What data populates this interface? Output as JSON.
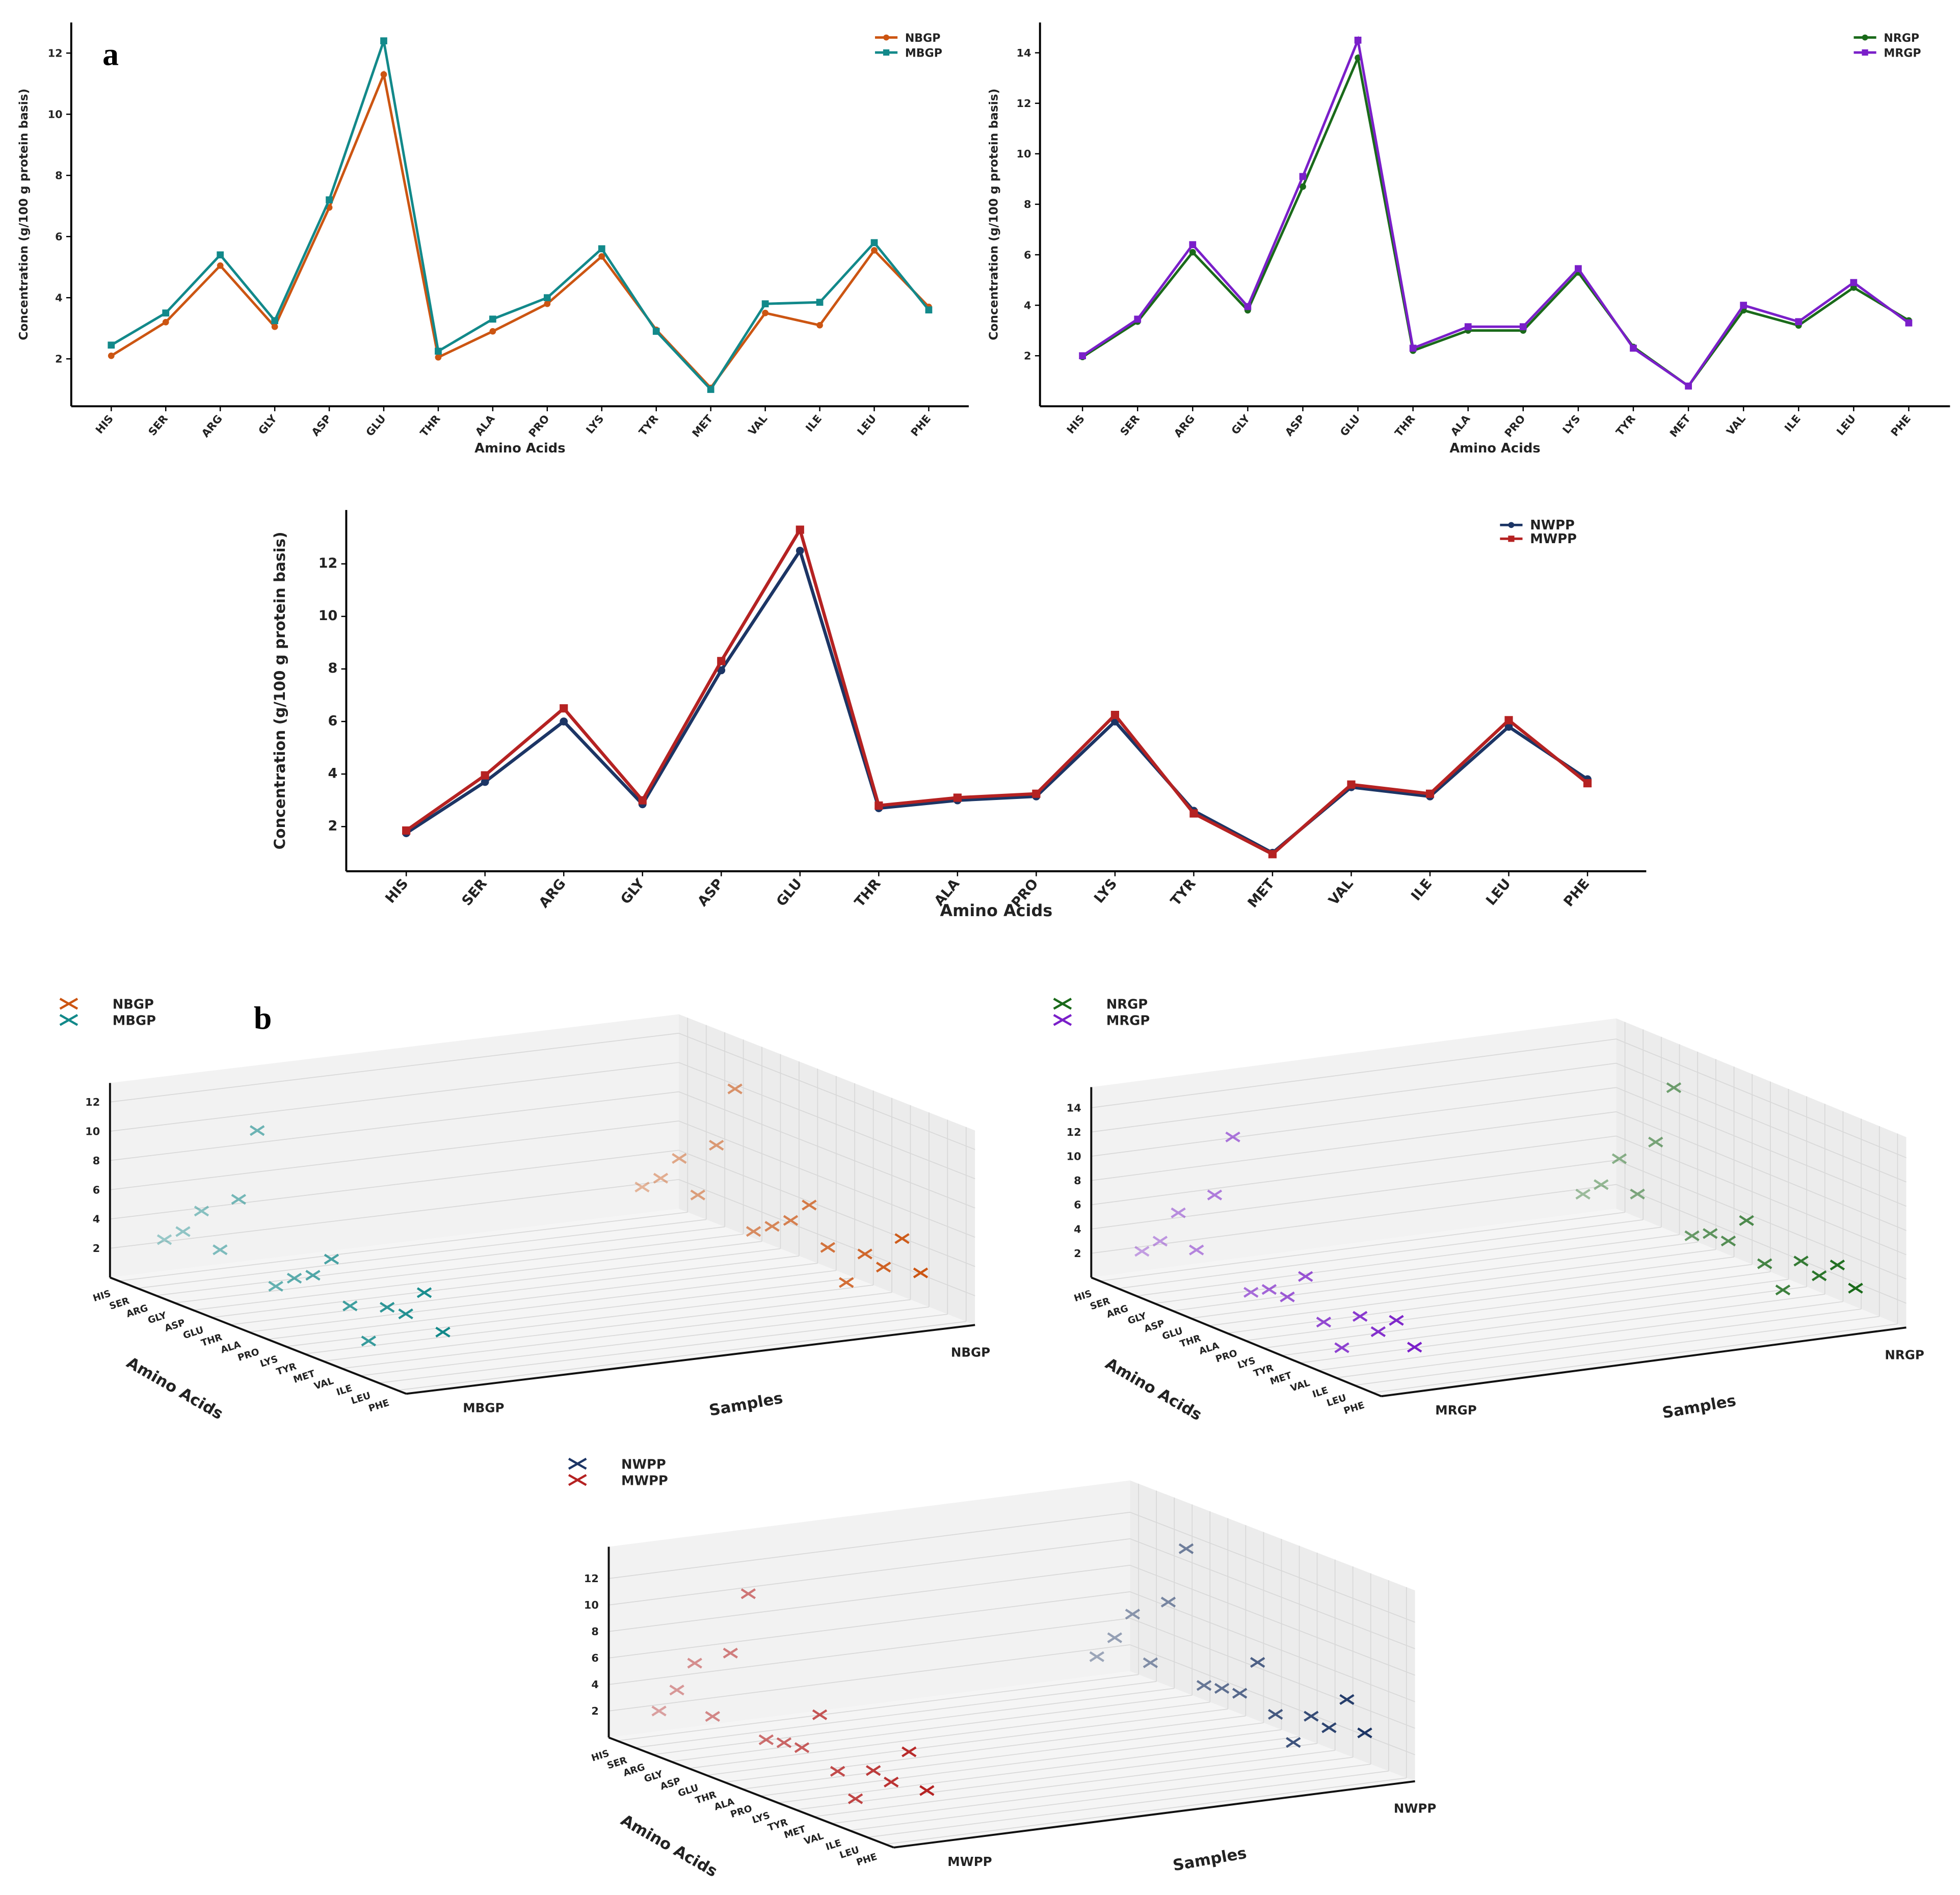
{
  "panel_labels": {
    "a": "a",
    "b": "b"
  },
  "chart_data": [
    {
      "type": "line",
      "panel": "a",
      "xlabel": "Amino Acids",
      "ylabel": "Concentration (g/100 g protein basis)",
      "categories": [
        "HIS",
        "SER",
        "ARG",
        "GLY",
        "ASP",
        "GLU",
        "THR",
        "ALA",
        "PRO",
        "LYS",
        "TYR",
        "MET",
        "VAL",
        "ILE",
        "LEU",
        "PHE"
      ],
      "yticks": [
        2,
        4,
        6,
        8,
        10,
        12
      ],
      "ylim": [
        0.45,
        13.0
      ],
      "legend": "top-right",
      "series": [
        {
          "name": "NBGP",
          "color": "#cc5512",
          "marker": "circle",
          "values": [
            2.1,
            3.2,
            5.05,
            3.05,
            6.95,
            11.3,
            2.05,
            2.9,
            3.8,
            5.35,
            2.95,
            1.05,
            3.5,
            3.1,
            5.55,
            3.7
          ]
        },
        {
          "name": "MBGP",
          "color": "#12898a",
          "marker": "square",
          "values": [
            2.45,
            3.5,
            5.4,
            3.25,
            7.2,
            12.4,
            2.25,
            3.3,
            4.0,
            5.6,
            2.9,
            1.0,
            3.8,
            3.85,
            5.8,
            3.6
          ]
        }
      ]
    },
    {
      "type": "line",
      "panel": "a",
      "xlabel": "Amino Acids",
      "ylabel": "Concentration (g/100 g protein basis)",
      "categories": [
        "HIS",
        "SER",
        "ARG",
        "GLY",
        "ASP",
        "GLU",
        "THR",
        "ALA",
        "PRO",
        "LYS",
        "TYR",
        "MET",
        "VAL",
        "ILE",
        "LEU",
        "PHE"
      ],
      "yticks": [
        2,
        4,
        6,
        8,
        10,
        12,
        14
      ],
      "ylim": [
        0.0,
        15.2
      ],
      "legend": "top-right",
      "series": [
        {
          "name": "NRGP",
          "color": "#1a6a1a",
          "marker": "circle",
          "values": [
            1.95,
            3.35,
            6.1,
            3.8,
            8.7,
            13.8,
            2.2,
            3.0,
            3.0,
            5.3,
            2.35,
            0.8,
            3.8,
            3.2,
            4.7,
            3.4
          ]
        },
        {
          "name": "MRGP",
          "color": "#7a1fc9",
          "marker": "square",
          "values": [
            2.0,
            3.45,
            6.4,
            3.95,
            9.1,
            14.5,
            2.3,
            3.15,
            3.15,
            5.45,
            2.3,
            0.8,
            4.0,
            3.35,
            4.9,
            3.3
          ]
        }
      ]
    },
    {
      "type": "line",
      "panel": "a",
      "xlabel": "Amino Acids",
      "ylabel": "Concentration (g/100 g protein basis)",
      "categories": [
        "HIS",
        "SER",
        "ARG",
        "GLY",
        "ASP",
        "GLU",
        "THR",
        "ALA",
        "PRO",
        "LYS",
        "TYR",
        "MET",
        "VAL",
        "ILE",
        "LEU",
        "PHE"
      ],
      "yticks": [
        2,
        4,
        6,
        8,
        10,
        12
      ],
      "ylim": [
        0.3,
        14.05
      ],
      "legend": "top-right",
      "series": [
        {
          "name": "NWPP",
          "color": "#1c3565",
          "marker": "circle",
          "values": [
            1.75,
            3.7,
            6.0,
            2.85,
            7.95,
            12.5,
            2.7,
            3.0,
            3.15,
            6.0,
            2.6,
            1.0,
            3.5,
            3.15,
            5.8,
            3.8
          ]
        },
        {
          "name": "MWPP",
          "color": "#b52222",
          "marker": "square",
          "values": [
            1.85,
            3.95,
            6.5,
            3.0,
            8.3,
            13.3,
            2.8,
            3.1,
            3.25,
            6.25,
            2.5,
            0.95,
            3.6,
            3.25,
            6.05,
            3.65
          ]
        }
      ]
    },
    {
      "type": "scatter3d",
      "panel": "b",
      "xlabel": "Amino Acids",
      "ylabel": "Samples",
      "categories": [
        "HIS",
        "SER",
        "ARG",
        "GLY",
        "ASP",
        "GLU",
        "THR",
        "ALA",
        "PRO",
        "LYS",
        "TYR",
        "MET",
        "VAL",
        "ILE",
        "LEU",
        "PHE"
      ],
      "samples": [
        "MBGP",
        "NBGP"
      ],
      "zticks": [
        2,
        4,
        6,
        8,
        10,
        12
      ],
      "legend": "top-left",
      "series": [
        {
          "name": "NBGP",
          "color": "#cc5512",
          "marker": "x",
          "values": [
            2.1,
            3.2,
            5.05,
            3.05,
            6.95,
            11.3,
            2.05,
            2.9,
            3.8,
            5.35,
            2.95,
            1.05,
            3.5,
            3.1,
            5.55,
            3.7
          ]
        },
        {
          "name": "MBGP",
          "color": "#12898a",
          "marker": "x",
          "values": [
            2.45,
            3.5,
            5.4,
            3.25,
            7.2,
            12.4,
            2.25,
            3.3,
            4.0,
            5.6,
            2.9,
            1.0,
            3.8,
            3.85,
            5.8,
            3.6
          ]
        }
      ]
    },
    {
      "type": "scatter3d",
      "panel": "b",
      "xlabel": "Amino Acids",
      "ylabel": "Samples",
      "categories": [
        "HIS",
        "SER",
        "ARG",
        "GLY",
        "ASP",
        "GLU",
        "THR",
        "ALA",
        "PRO",
        "LYS",
        "TYR",
        "MET",
        "VAL",
        "ILE",
        "LEU",
        "PHE"
      ],
      "samples": [
        "MRGP",
        "NRGP"
      ],
      "zticks": [
        2,
        4,
        6,
        8,
        10,
        12,
        14
      ],
      "legend": "top-left",
      "series": [
        {
          "name": "NRGP",
          "color": "#1a6a1a",
          "marker": "x",
          "values": [
            1.95,
            3.35,
            6.1,
            3.8,
            8.7,
            13.8,
            2.2,
            3.0,
            3.0,
            5.3,
            2.35,
            0.8,
            3.8,
            3.2,
            4.7,
            3.4
          ]
        },
        {
          "name": "MRGP",
          "color": "#7a1fc9",
          "marker": "x",
          "values": [
            2.0,
            3.45,
            6.4,
            3.95,
            9.1,
            14.5,
            2.3,
            3.15,
            3.15,
            5.45,
            2.3,
            0.8,
            4.0,
            3.35,
            4.9,
            3.3
          ]
        }
      ]
    },
    {
      "type": "scatter3d",
      "panel": "b",
      "xlabel": "Amino Acids",
      "ylabel": "Samples",
      "categories": [
        "HIS",
        "SER",
        "ARG",
        "GLY",
        "ASP",
        "GLU",
        "THR",
        "ALA",
        "PRO",
        "LYS",
        "TYR",
        "MET",
        "VAL",
        "ILE",
        "LEU",
        "PHE"
      ],
      "samples": [
        "MWPP",
        "NWPP"
      ],
      "zticks": [
        2,
        4,
        6,
        8,
        10,
        12
      ],
      "legend": "top-left",
      "series": [
        {
          "name": "NWPP",
          "color": "#1c3565",
          "marker": "x",
          "values": [
            1.75,
            3.7,
            6.0,
            2.85,
            7.95,
            12.5,
            2.7,
            3.0,
            3.15,
            6.0,
            2.6,
            1.0,
            3.5,
            3.15,
            5.8,
            3.8
          ]
        },
        {
          "name": "MWPP",
          "color": "#b52222",
          "marker": "x",
          "values": [
            1.85,
            3.95,
            6.5,
            3.0,
            8.3,
            13.3,
            2.8,
            3.1,
            3.25,
            6.25,
            2.5,
            0.95,
            3.6,
            3.25,
            6.05,
            3.65
          ]
        }
      ]
    }
  ]
}
